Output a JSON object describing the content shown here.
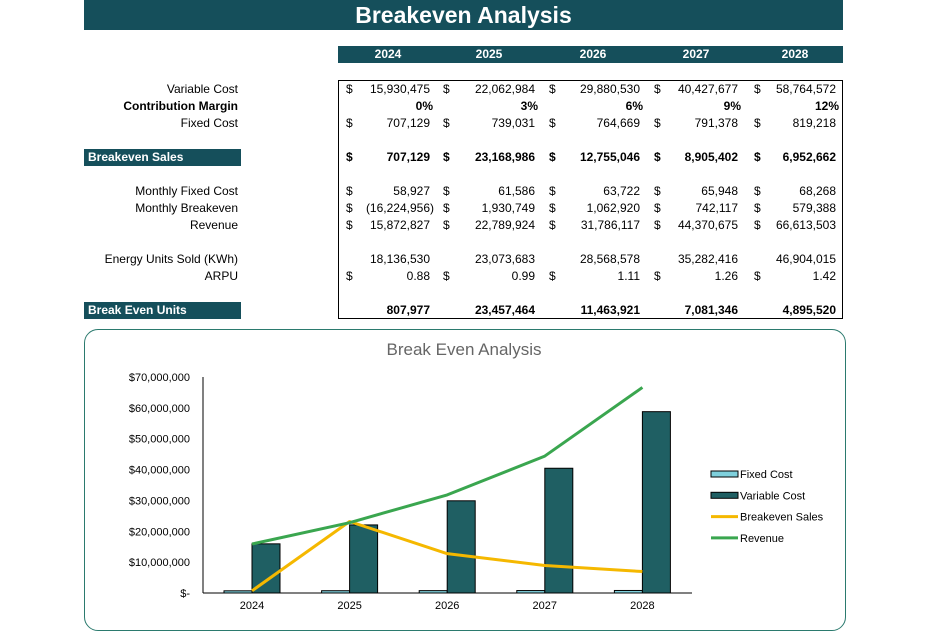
{
  "title": "Breakeven Analysis",
  "years": [
    "2024",
    "2025",
    "2026",
    "2027",
    "2028"
  ],
  "rows": [
    {
      "label": "Variable Cost",
      "bold": false,
      "band": false,
      "dollar": true,
      "values": [
        "15,930,475",
        "22,062,984",
        "29,880,530",
        "40,427,677",
        "58,764,572"
      ]
    },
    {
      "label": "Contribution Margin",
      "bold": true,
      "band": false,
      "dollar": false,
      "values": [
        "0%",
        "3%",
        "6%",
        "9%",
        "12%"
      ]
    },
    {
      "label": "Fixed Cost",
      "bold": false,
      "band": false,
      "dollar": true,
      "values": [
        "707,129",
        "739,031",
        "764,669",
        "791,378",
        "819,218"
      ]
    },
    {
      "label": "Breakeven Sales",
      "bold": true,
      "band": true,
      "dollar": true,
      "values": [
        "707,129",
        "23,168,986",
        "12,755,046",
        "8,905,402",
        "6,952,662"
      ]
    },
    {
      "label": "Monthly Fixed Cost",
      "bold": false,
      "band": false,
      "dollar": true,
      "values": [
        "58,927",
        "61,586",
        "63,722",
        "65,948",
        "68,268"
      ]
    },
    {
      "label": "Monthly Breakeven",
      "bold": false,
      "band": false,
      "dollar": true,
      "values": [
        "(16,224,956)",
        "1,930,749",
        "1,062,920",
        "742,117",
        "579,388"
      ]
    },
    {
      "label": "Revenue",
      "bold": false,
      "band": false,
      "dollar": true,
      "values": [
        "15,872,827",
        "22,789,924",
        "31,786,117",
        "44,370,675",
        "66,613,503"
      ]
    },
    {
      "label": "Energy Units Sold (KWh)",
      "bold": false,
      "band": false,
      "dollar": false,
      "values": [
        "18,136,530",
        "23,073,683",
        "28,568,578",
        "35,282,416",
        "46,904,015"
      ]
    },
    {
      "label": "ARPU",
      "bold": false,
      "band": false,
      "dollar": true,
      "values": [
        "0.88",
        "0.99",
        "1.11",
        "1.26",
        "1.42"
      ]
    },
    {
      "label": "Break Even Units",
      "bold": true,
      "band": true,
      "dollar": false,
      "values": [
        "807,977",
        "23,457,464",
        "11,463,921",
        "7,081,346",
        "4,895,520"
      ]
    }
  ],
  "currency_symbol": "$",
  "chart_data": {
    "type": "bar",
    "title": "Break Even Analysis",
    "categories": [
      "2024",
      "2025",
      "2026",
      "2027",
      "2028"
    ],
    "ylim": [
      0,
      70000000
    ],
    "yticks": [
      "$-",
      "$10,000,000",
      "$20,000,000",
      "$30,000,000",
      "$40,000,000",
      "$50,000,000",
      "$60,000,000",
      "$70,000,000"
    ],
    "legend_position": "right",
    "series": [
      {
        "name": "Fixed Cost",
        "kind": "bar",
        "color": "#7fd0dc",
        "values": [
          707129,
          739031,
          764669,
          791378,
          819218
        ]
      },
      {
        "name": "Variable Cost",
        "kind": "bar",
        "color": "#1f5f63",
        "values": [
          15930475,
          22062984,
          29880530,
          40427677,
          58764572
        ]
      },
      {
        "name": "Breakeven Sales",
        "kind": "line",
        "color": "#f5b800",
        "values": [
          707129,
          23168986,
          12755046,
          8905402,
          6952662
        ]
      },
      {
        "name": "Revenue",
        "kind": "line",
        "color": "#3aa64f",
        "values": [
          15872827,
          22789924,
          31786117,
          44370675,
          66613503
        ]
      }
    ]
  }
}
